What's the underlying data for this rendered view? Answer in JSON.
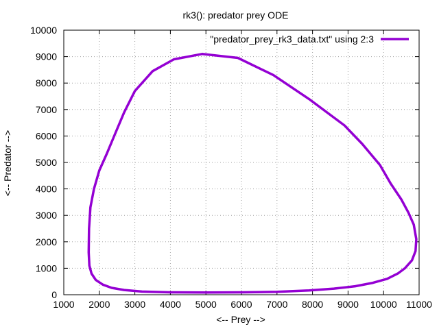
{
  "chart_data": {
    "type": "line",
    "title": "rk3(): predator prey ODE",
    "xlabel": "<-- Prey -->",
    "ylabel": "<-- Predator -->",
    "xlim": [
      1000,
      11000
    ],
    "ylim": [
      0,
      10000
    ],
    "xticks": [
      1000,
      2000,
      3000,
      4000,
      5000,
      6000,
      7000,
      8000,
      9000,
      10000,
      11000
    ],
    "yticks": [
      0,
      1000,
      2000,
      3000,
      4000,
      5000,
      6000,
      7000,
      8000,
      9000,
      10000
    ],
    "grid": true,
    "legend_position": "top-right",
    "series": [
      {
        "name": "\"predator_prey_rk3_data.txt\" using 2:3",
        "color": "#9400d3",
        "x": [
          4900,
          5900,
          6900,
          7900,
          8900,
          9400,
          9900,
          10200,
          10500,
          10700,
          10850,
          10920,
          10900,
          10800,
          10600,
          10400,
          10100,
          9700,
          9200,
          8600,
          7900,
          7000,
          6000,
          5000,
          4000,
          3200,
          2700,
          2350,
          2100,
          1900,
          1780,
          1720,
          1700,
          1710,
          1750,
          1850,
          2000,
          2200,
          2450,
          2700,
          3000,
          3500,
          4100,
          4900
        ],
        "y": [
          9100,
          8950,
          8300,
          7400,
          6400,
          5700,
          4900,
          4200,
          3600,
          3100,
          2650,
          2100,
          1650,
          1300,
          1000,
          800,
          600,
          450,
          320,
          230,
          160,
          110,
          90,
          85,
          90,
          120,
          180,
          260,
          380,
          560,
          800,
          1100,
          1600,
          2500,
          3300,
          4000,
          4700,
          5300,
          6100,
          6900,
          7700,
          8450,
          8900,
          9100
        ]
      }
    ]
  }
}
